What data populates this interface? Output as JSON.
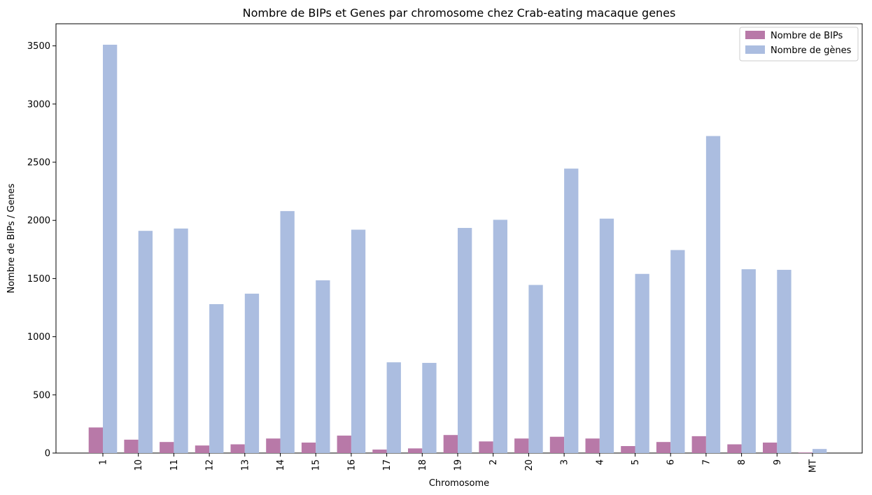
{
  "chart_data": {
    "type": "bar",
    "title": "Nombre de BIPs et Genes par chromosome chez Crab-eating macaque genes",
    "xlabel": "Chromosome",
    "ylabel": "Nombre de BIPs / Genes",
    "categories": [
      "1",
      "10",
      "11",
      "12",
      "13",
      "14",
      "15",
      "16",
      "17",
      "18",
      "19",
      "2",
      "20",
      "3",
      "4",
      "5",
      "6",
      "7",
      "8",
      "9",
      "MT"
    ],
    "series": [
      {
        "name": "Nombre de BIPs",
        "color": "#b879a8",
        "values": [
          220,
          115,
          95,
          65,
          75,
          125,
          90,
          150,
          30,
          40,
          155,
          100,
          125,
          140,
          125,
          60,
          95,
          145,
          75,
          90,
          5
        ]
      },
      {
        "name": "Nombre de gènes",
        "color": "#abbde0",
        "values": [
          3510,
          1910,
          1930,
          1280,
          1370,
          2080,
          1485,
          1920,
          780,
          775,
          1935,
          2005,
          1445,
          2445,
          2015,
          1540,
          1745,
          2725,
          1580,
          1575,
          35
        ]
      }
    ],
    "ylim": [
      0,
      3690
    ],
    "yticks": [
      0,
      500,
      1000,
      1500,
      2000,
      2500,
      3000,
      3500
    ],
    "legend": "top-right",
    "grid": false
  }
}
